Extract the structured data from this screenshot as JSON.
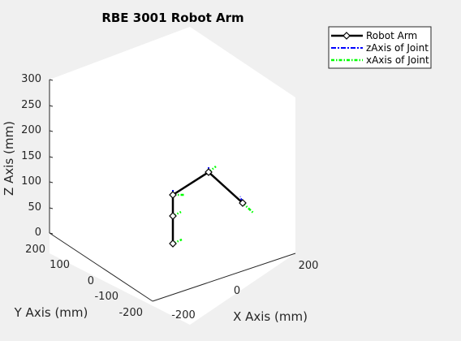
{
  "chart_data": {
    "type": "line",
    "title": "RBE 3001 Robot Arm",
    "xlabel": "X Axis (mm)",
    "ylabel": "Y Axis (mm)",
    "zlabel": "Z Axis (mm)",
    "x_ticks": [
      "-200",
      "0",
      "200"
    ],
    "y_ticks": [
      "200",
      "100",
      "0",
      "-100",
      "-200"
    ],
    "z_ticks": [
      "300",
      "250",
      "200",
      "150",
      "100",
      "50",
      "0"
    ],
    "legend": {
      "placement": "top-right",
      "entries": [
        {
          "label": "Robot Arm",
          "color": "#000000",
          "style": "solid",
          "marker": "diamond"
        },
        {
          "label": "zAxis of Joint",
          "color": "#0000ff",
          "style": "dash-dot"
        },
        {
          "label": "xAxis of Joint",
          "color": "#00ff00",
          "style": "dash-dot"
        }
      ]
    },
    "series": [
      {
        "name": "Robot Arm",
        "color": "#000000",
        "points": [
          {
            "x": 0,
            "y": 0,
            "z": 0
          },
          {
            "x": 0,
            "y": 0,
            "z": 55
          },
          {
            "x": 0,
            "y": 0,
            "z": 110
          },
          {
            "x": 100,
            "y": 0,
            "z": 165
          },
          {
            "x": 200,
            "y": 0,
            "z": 110
          }
        ]
      }
    ]
  },
  "colors": {
    "background": "#f0f0f0",
    "plot_face": "#ffffff",
    "axis": "#262626",
    "arm": "#000000",
    "z_axis": "#0000ff",
    "x_axis": "#00ff00"
  }
}
